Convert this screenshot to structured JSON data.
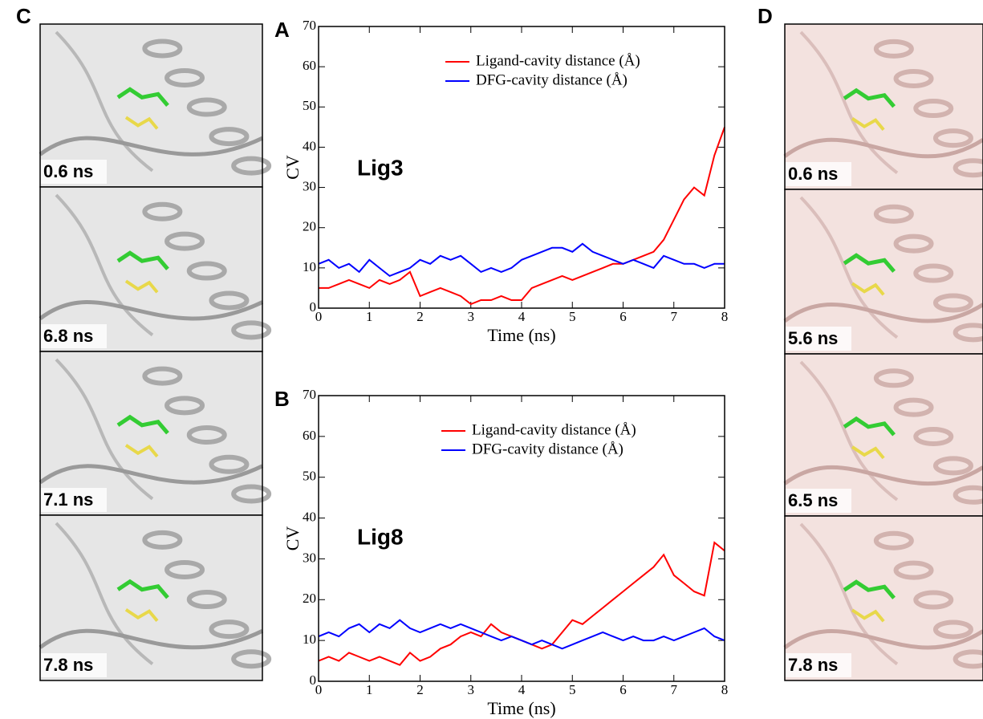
{
  "chart_data": [
    {
      "type": "line",
      "label": "A",
      "annotation": "Lig3",
      "x_label": "Time (ns)",
      "y_label": "CV",
      "x": [
        0,
        0.2,
        0.4,
        0.6,
        0.8,
        1,
        1.2,
        1.4,
        1.6,
        1.8,
        2,
        2.2,
        2.4,
        2.6,
        2.8,
        3,
        3.2,
        3.4,
        3.6,
        3.8,
        4,
        4.2,
        4.4,
        4.6,
        4.8,
        5,
        5.2,
        5.4,
        5.6,
        5.8,
        6,
        6.2,
        6.4,
        6.6,
        6.8,
        7,
        7.2,
        7.4,
        7.6,
        7.8,
        8
      ],
      "series": [
        {
          "name": "Ligand-cavity distance (Å)",
          "color": "#ff0000",
          "values": [
            5,
            5,
            6,
            7,
            6,
            5,
            7,
            6,
            7,
            9,
            3,
            4,
            5,
            4,
            3,
            1,
            2,
            2,
            3,
            2,
            2,
            5,
            6,
            7,
            8,
            7,
            8,
            9,
            10,
            11,
            11,
            12,
            13,
            14,
            17,
            22,
            27,
            30,
            28,
            38,
            45
          ]
        },
        {
          "name": "DFG-cavity distance (Å)",
          "color": "#0000ff",
          "values": [
            11,
            12,
            10,
            11,
            9,
            12,
            10,
            8,
            9,
            10,
            12,
            11,
            13,
            12,
            13,
            11,
            9,
            10,
            9,
            10,
            12,
            13,
            14,
            15,
            15,
            14,
            16,
            14,
            13,
            12,
            11,
            12,
            11,
            10,
            13,
            12,
            11,
            11,
            10,
            11,
            11
          ]
        }
      ],
      "xlim": [
        0,
        8
      ],
      "ylim": [
        0,
        70
      ],
      "xticks": [
        0,
        1,
        2,
        3,
        4,
        5,
        6,
        7,
        8
      ],
      "yticks": [
        0,
        10,
        20,
        30,
        40,
        50,
        60,
        70
      ]
    },
    {
      "type": "line",
      "label": "B",
      "annotation": "Lig8",
      "x_label": "Time (ns)",
      "y_label": "CV",
      "x": [
        0,
        0.2,
        0.4,
        0.6,
        0.8,
        1,
        1.2,
        1.4,
        1.6,
        1.8,
        2,
        2.2,
        2.4,
        2.6,
        2.8,
        3,
        3.2,
        3.4,
        3.6,
        3.8,
        4,
        4.2,
        4.4,
        4.6,
        4.8,
        5,
        5.2,
        5.4,
        5.6,
        5.8,
        6,
        6.2,
        6.4,
        6.6,
        6.8,
        7,
        7.2,
        7.4,
        7.6,
        7.8,
        8
      ],
      "series": [
        {
          "name": "Ligand-cavity distance (Å)",
          "color": "#ff0000",
          "values": [
            5,
            6,
            5,
            7,
            6,
            5,
            6,
            5,
            4,
            7,
            5,
            6,
            8,
            9,
            11,
            12,
            11,
            14,
            12,
            11,
            10,
            9,
            8,
            9,
            12,
            15,
            14,
            16,
            18,
            20,
            22,
            24,
            26,
            28,
            31,
            26,
            24,
            22,
            21,
            34,
            32
          ]
        },
        {
          "name": "DFG-cavity distance (Å)",
          "color": "#0000ff",
          "values": [
            11,
            12,
            11,
            13,
            14,
            12,
            14,
            13,
            15,
            13,
            12,
            13,
            14,
            13,
            14,
            13,
            12,
            11,
            10,
            11,
            10,
            9,
            10,
            9,
            8,
            9,
            10,
            11,
            12,
            11,
            10,
            11,
            10,
            10,
            11,
            10,
            11,
            12,
            13,
            11,
            10
          ]
        }
      ],
      "xlim": [
        0,
        8
      ],
      "ylim": [
        0,
        70
      ],
      "xticks": [
        0,
        1,
        2,
        3,
        4,
        5,
        6,
        7,
        8
      ],
      "yticks": [
        0,
        10,
        20,
        30,
        40,
        50,
        60,
        70
      ]
    }
  ],
  "panels": [
    {
      "label": "C",
      "times": [
        "0.6 ns",
        "6.8 ns",
        "7.1 ns",
        "7.8 ns"
      ]
    },
    {
      "label": "D",
      "times": [
        "0.6 ns",
        "5.6 ns",
        "6.5 ns",
        "7.8 ns"
      ]
    }
  ]
}
